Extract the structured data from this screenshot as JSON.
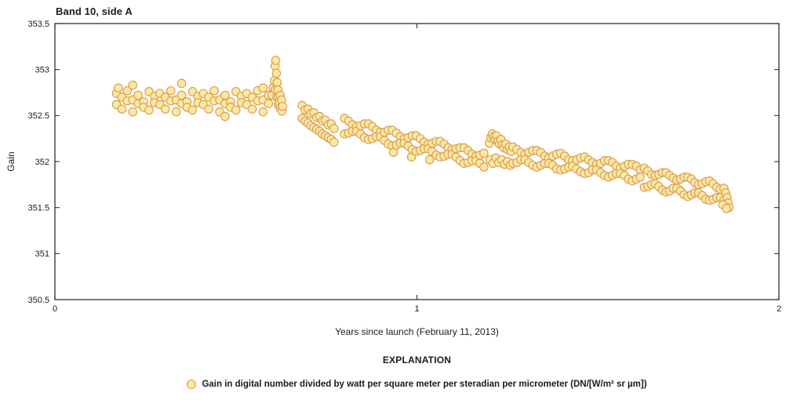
{
  "chart": {
    "title": "Band 10, side A",
    "xlabel": "Years since launch (February 11, 2013)",
    "ylabel": "Gain",
    "explanation_title": "EXPLANATION",
    "legend_label": "Gain in digital number divided by watt per square meter per steradian per micrometer (DN/[W/m² sr µm])"
  },
  "style": {
    "frame_color": "#2f2f2f",
    "tick_color": "#2f2f2f",
    "text_color": "#1b1b1b",
    "marker_fill": "#FBE8A1",
    "marker_stroke": "#D9984F",
    "background": "#ffffff"
  },
  "chart_data": {
    "type": "scatter",
    "title": "Band 10, side A",
    "xlabel": "Years since launch (February 11, 2013)",
    "ylabel": "Gain",
    "xlim": [
      0,
      2
    ],
    "ylim": [
      350.5,
      353.5
    ],
    "x_ticks": [
      0,
      1,
      2
    ],
    "y_ticks": [
      350.5,
      351,
      351.5,
      352,
      352.5,
      353,
      353.5
    ],
    "grid": false,
    "legend_position": "bottom",
    "series_name": "Gain in digital number divided by watt per square meter per steradian per micrometer (DN/[W/m² sr µm])",
    "marker": {
      "shape": "circle",
      "radius": 5.2,
      "fill": "#FBE8A1",
      "stroke": "#D9984F",
      "stroke_width": 1.1
    },
    "points": [
      [
        0.17,
        352.74
      ],
      [
        0.17,
        352.62
      ],
      [
        0.175,
        352.8
      ],
      [
        0.185,
        352.7
      ],
      [
        0.185,
        352.57
      ],
      [
        0.2,
        352.77
      ],
      [
        0.2,
        352.66
      ],
      [
        0.215,
        352.67
      ],
      [
        0.215,
        352.54
      ],
      [
        0.215,
        352.83
      ],
      [
        0.23,
        352.72
      ],
      [
        0.23,
        352.63
      ],
      [
        0.245,
        352.65
      ],
      [
        0.245,
        352.59
      ],
      [
        0.26,
        352.76
      ],
      [
        0.26,
        352.56
      ],
      [
        0.275,
        352.71
      ],
      [
        0.275,
        352.64
      ],
      [
        0.29,
        352.74
      ],
      [
        0.29,
        352.62
      ],
      [
        0.305,
        352.7
      ],
      [
        0.305,
        352.57
      ],
      [
        0.32,
        352.77
      ],
      [
        0.32,
        352.66
      ],
      [
        0.335,
        352.67
      ],
      [
        0.335,
        352.54
      ],
      [
        0.35,
        352.72
      ],
      [
        0.35,
        352.63
      ],
      [
        0.35,
        352.85
      ],
      [
        0.365,
        352.65
      ],
      [
        0.365,
        352.59
      ],
      [
        0.38,
        352.76
      ],
      [
        0.38,
        352.56
      ],
      [
        0.395,
        352.71
      ],
      [
        0.395,
        352.64
      ],
      [
        0.41,
        352.74
      ],
      [
        0.41,
        352.62
      ],
      [
        0.425,
        352.7
      ],
      [
        0.425,
        352.57
      ],
      [
        0.44,
        352.77
      ],
      [
        0.44,
        352.66
      ],
      [
        0.455,
        352.67
      ],
      [
        0.455,
        352.54
      ],
      [
        0.47,
        352.72
      ],
      [
        0.47,
        352.63
      ],
      [
        0.47,
        352.49
      ],
      [
        0.485,
        352.65
      ],
      [
        0.485,
        352.59
      ],
      [
        0.5,
        352.76
      ],
      [
        0.5,
        352.56
      ],
      [
        0.515,
        352.71
      ],
      [
        0.515,
        352.64
      ],
      [
        0.53,
        352.74
      ],
      [
        0.53,
        352.62
      ],
      [
        0.545,
        352.7
      ],
      [
        0.545,
        352.57
      ],
      [
        0.56,
        352.77
      ],
      [
        0.56,
        352.66
      ],
      [
        0.575,
        352.67
      ],
      [
        0.575,
        352.54
      ],
      [
        0.575,
        352.8
      ],
      [
        0.59,
        352.72
      ],
      [
        0.59,
        352.63
      ],
      [
        0.6,
        352.72
      ],
      [
        0.603,
        352.8
      ],
      [
        0.606,
        352.88
      ],
      [
        0.608,
        353.04
      ],
      [
        0.61,
        353.1
      ],
      [
        0.609,
        352.78
      ],
      [
        0.612,
        352.96
      ],
      [
        0.613,
        352.7
      ],
      [
        0.614,
        352.86
      ],
      [
        0.616,
        352.78
      ],
      [
        0.617,
        352.62
      ],
      [
        0.618,
        352.7
      ],
      [
        0.62,
        352.64
      ],
      [
        0.622,
        352.72
      ],
      [
        0.623,
        352.58
      ],
      [
        0.626,
        352.67
      ],
      [
        0.627,
        352.55
      ],
      [
        0.629,
        352.6
      ],
      [
        0.683,
        352.61
      ],
      [
        0.683,
        352.47
      ],
      [
        0.691,
        352.56
      ],
      [
        0.691,
        352.44
      ],
      [
        0.699,
        352.57
      ],
      [
        0.699,
        352.42
      ],
      [
        0.707,
        352.52
      ],
      [
        0.707,
        352.39
      ],
      [
        0.715,
        352.53
      ],
      [
        0.715,
        352.37
      ],
      [
        0.723,
        352.48
      ],
      [
        0.723,
        352.35
      ],
      [
        0.731,
        352.49
      ],
      [
        0.731,
        352.33
      ],
      [
        0.739,
        352.44
      ],
      [
        0.739,
        352.3
      ],
      [
        0.747,
        352.45
      ],
      [
        0.747,
        352.28
      ],
      [
        0.755,
        352.4
      ],
      [
        0.755,
        352.26
      ],
      [
        0.763,
        352.41
      ],
      [
        0.763,
        352.24
      ],
      [
        0.771,
        352.36
      ],
      [
        0.771,
        352.21
      ],
      [
        0.8,
        352.47
      ],
      [
        0.8,
        352.3
      ],
      [
        0.811,
        352.44
      ],
      [
        0.811,
        352.31
      ],
      [
        0.822,
        352.4
      ],
      [
        0.822,
        352.33
      ],
      [
        0.833,
        352.38
      ],
      [
        0.833,
        352.33
      ],
      [
        0.844,
        352.39
      ],
      [
        0.844,
        352.3
      ],
      [
        0.855,
        352.41
      ],
      [
        0.855,
        352.26
      ],
      [
        0.866,
        352.41
      ],
      [
        0.866,
        352.24
      ],
      [
        0.877,
        352.38
      ],
      [
        0.877,
        352.25
      ],
      [
        0.888,
        352.34
      ],
      [
        0.888,
        352.27
      ],
      [
        0.899,
        352.32
      ],
      [
        0.899,
        352.27
      ],
      [
        0.91,
        352.32
      ],
      [
        0.91,
        352.23
      ],
      [
        0.921,
        352.34
      ],
      [
        0.921,
        352.19
      ],
      [
        0.932,
        352.34
      ],
      [
        0.932,
        352.17
      ],
      [
        0.935,
        352.1
      ],
      [
        0.943,
        352.31
      ],
      [
        0.943,
        352.18
      ],
      [
        0.954,
        352.27
      ],
      [
        0.954,
        352.2
      ],
      [
        0.965,
        352.25
      ],
      [
        0.965,
        352.2
      ],
      [
        0.976,
        352.26
      ],
      [
        0.976,
        352.17
      ],
      [
        0.985,
        352.05
      ],
      [
        0.987,
        352.28
      ],
      [
        0.987,
        352.13
      ],
      [
        0.998,
        352.28
      ],
      [
        0.998,
        352.11
      ],
      [
        1.009,
        352.25
      ],
      [
        1.009,
        352.12
      ],
      [
        1.02,
        352.21
      ],
      [
        1.02,
        352.14
      ],
      [
        1.031,
        352.19
      ],
      [
        1.031,
        352.14
      ],
      [
        1.035,
        352.02
      ],
      [
        1.042,
        352.2
      ],
      [
        1.042,
        352.11
      ],
      [
        1.053,
        352.22
      ],
      [
        1.053,
        352.07
      ],
      [
        1.064,
        352.22
      ],
      [
        1.064,
        352.05
      ],
      [
        1.075,
        352.19
      ],
      [
        1.075,
        352.06
      ],
      [
        1.086,
        352.15
      ],
      [
        1.086,
        352.08
      ],
      [
        1.097,
        352.13
      ],
      [
        1.097,
        352.08
      ],
      [
        1.108,
        352.14
      ],
      [
        1.108,
        352.05
      ],
      [
        1.119,
        352.15
      ],
      [
        1.119,
        352.01
      ],
      [
        1.13,
        352.15
      ],
      [
        1.13,
        351.98
      ],
      [
        1.141,
        352.12
      ],
      [
        1.141,
        351.99
      ],
      [
        1.152,
        352.08
      ],
      [
        1.152,
        352.01
      ],
      [
        1.163,
        352.06
      ],
      [
        1.163,
        352.01
      ],
      [
        1.174,
        352.07
      ],
      [
        1.174,
        351.98
      ],
      [
        1.185,
        352.09
      ],
      [
        1.185,
        351.94
      ],
      [
        1.2,
        352.2
      ],
      [
        1.204,
        352.26
      ],
      [
        1.208,
        352.3
      ],
      [
        1.212,
        352.27
      ],
      [
        1.216,
        352.24
      ],
      [
        1.22,
        352.28
      ],
      [
        1.224,
        352.22
      ],
      [
        1.228,
        352.19
      ],
      [
        1.232,
        352.24
      ],
      [
        1.236,
        352.18
      ],
      [
        1.24,
        352.15
      ],
      [
        1.245,
        352.19
      ],
      [
        1.25,
        352.13
      ],
      [
        1.255,
        352.16
      ],
      [
        1.26,
        352.11
      ],
      [
        1.202,
        352.02
      ],
      [
        1.21,
        351.98
      ],
      [
        1.218,
        352.04
      ],
      [
        1.226,
        351.99
      ],
      [
        1.234,
        352.02
      ],
      [
        1.242,
        351.97
      ],
      [
        1.25,
        352.0
      ],
      [
        1.258,
        351.96
      ],
      [
        1.265,
        352.16
      ],
      [
        1.265,
        351.98
      ],
      [
        1.276,
        352.13
      ],
      [
        1.276,
        351.99
      ],
      [
        1.287,
        352.1
      ],
      [
        1.287,
        352.02
      ],
      [
        1.298,
        352.08
      ],
      [
        1.298,
        352.02
      ],
      [
        1.309,
        352.1
      ],
      [
        1.309,
        351.99
      ],
      [
        1.32,
        352.12
      ],
      [
        1.32,
        351.96
      ],
      [
        1.331,
        352.12
      ],
      [
        1.331,
        351.94
      ],
      [
        1.342,
        352.1
      ],
      [
        1.342,
        351.96
      ],
      [
        1.353,
        352.06
      ],
      [
        1.353,
        351.98
      ],
      [
        1.364,
        352.04
      ],
      [
        1.364,
        351.98
      ],
      [
        1.375,
        352.06
      ],
      [
        1.375,
        351.96
      ],
      [
        1.386,
        352.08
      ],
      [
        1.386,
        351.92
      ],
      [
        1.397,
        352.09
      ],
      [
        1.397,
        351.91
      ],
      [
        1.408,
        352.06
      ],
      [
        1.408,
        351.92
      ],
      [
        1.419,
        352.02
      ],
      [
        1.419,
        351.94
      ],
      [
        1.43,
        352.01
      ],
      [
        1.43,
        351.95
      ],
      [
        1.441,
        352.02
      ],
      [
        1.441,
        351.92
      ],
      [
        1.452,
        352.04
      ],
      [
        1.452,
        351.89
      ],
      [
        1.463,
        352.05
      ],
      [
        1.463,
        351.87
      ],
      [
        1.474,
        352.02
      ],
      [
        1.474,
        351.88
      ],
      [
        1.485,
        351.99
      ],
      [
        1.485,
        351.91
      ],
      [
        1.496,
        351.97
      ],
      [
        1.496,
        351.91
      ],
      [
        1.507,
        351.98
      ],
      [
        1.507,
        351.88
      ],
      [
        1.518,
        352.01
      ],
      [
        1.518,
        351.85
      ],
      [
        1.529,
        352.01
      ],
      [
        1.529,
        351.83
      ],
      [
        1.54,
        351.99
      ],
      [
        1.54,
        351.85
      ],
      [
        1.551,
        351.95
      ],
      [
        1.551,
        351.87
      ],
      [
        1.562,
        351.93
      ],
      [
        1.562,
        351.87
      ],
      [
        1.573,
        351.95
      ],
      [
        1.573,
        351.85
      ],
      [
        1.584,
        351.97
      ],
      [
        1.584,
        351.81
      ],
      [
        1.595,
        351.97
      ],
      [
        1.595,
        351.79
      ],
      [
        1.606,
        351.95
      ],
      [
        1.606,
        351.81
      ],
      [
        1.617,
        351.91
      ],
      [
        1.617,
        351.83
      ],
      [
        1.628,
        351.93
      ],
      [
        1.628,
        351.72
      ],
      [
        1.638,
        351.9
      ],
      [
        1.638,
        351.73
      ],
      [
        1.648,
        351.86
      ],
      [
        1.648,
        351.75
      ],
      [
        1.658,
        351.85
      ],
      [
        1.658,
        351.76
      ],
      [
        1.668,
        351.86
      ],
      [
        1.668,
        351.73
      ],
      [
        1.678,
        351.88
      ],
      [
        1.678,
        351.69
      ],
      [
        1.688,
        351.88
      ],
      [
        1.688,
        351.67
      ],
      [
        1.698,
        351.85
      ],
      [
        1.698,
        351.68
      ],
      [
        1.708,
        351.82
      ],
      [
        1.708,
        351.71
      ],
      [
        1.718,
        351.8
      ],
      [
        1.718,
        351.71
      ],
      [
        1.728,
        351.81
      ],
      [
        1.728,
        351.68
      ],
      [
        1.738,
        351.83
      ],
      [
        1.738,
        351.64
      ],
      [
        1.748,
        351.83
      ],
      [
        1.748,
        351.62
      ],
      [
        1.758,
        351.81
      ],
      [
        1.758,
        351.64
      ],
      [
        1.768,
        351.77
      ],
      [
        1.768,
        351.66
      ],
      [
        1.778,
        351.75
      ],
      [
        1.778,
        351.66
      ],
      [
        1.788,
        351.76
      ],
      [
        1.788,
        351.63
      ],
      [
        1.798,
        351.78
      ],
      [
        1.798,
        351.59
      ],
      [
        1.808,
        351.79
      ],
      [
        1.808,
        351.58
      ],
      [
        1.818,
        351.76
      ],
      [
        1.818,
        351.59
      ],
      [
        1.828,
        351.72
      ],
      [
        1.828,
        351.61
      ],
      [
        1.838,
        351.7
      ],
      [
        1.838,
        351.61
      ],
      [
        1.848,
        351.71
      ],
      [
        1.848,
        351.58
      ],
      [
        1.853,
        351.66
      ],
      [
        1.857,
        351.61
      ],
      [
        1.86,
        351.55
      ],
      [
        1.862,
        351.5
      ],
      [
        1.845,
        351.53
      ],
      [
        1.855,
        351.49
      ]
    ]
  }
}
